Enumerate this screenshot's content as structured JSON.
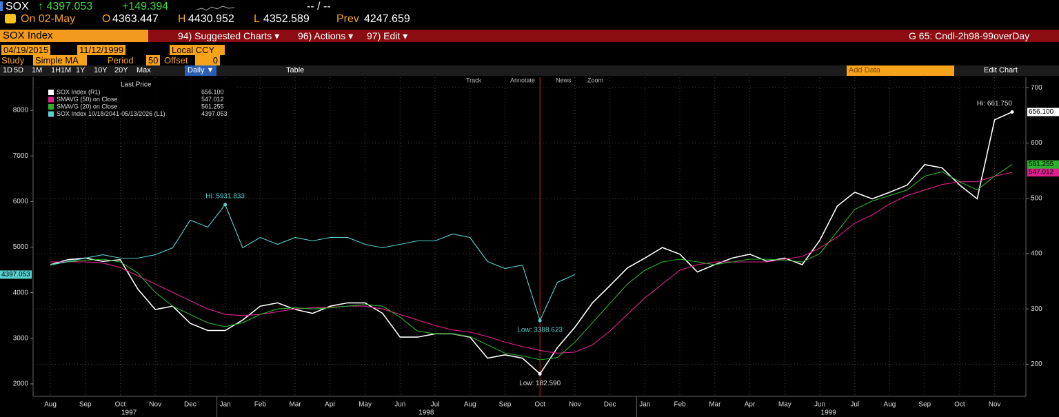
{
  "header": {
    "ticker": "SOX",
    "last": "↑ 4397.053",
    "change": "+149.394",
    "bid_ask": "-- / --",
    "date": "On 02-May",
    "open": {
      "label": "O",
      "value": "4363.447"
    },
    "high": {
      "label": "H",
      "value": "4430.952"
    },
    "low": {
      "label": "L",
      "value": "4352.589"
    },
    "prev": {
      "label": "Prev",
      "value": "4247.659"
    }
  },
  "menu": {
    "security": "SOX Index",
    "items": [
      "94) Suggested Charts ▾",
      "96) Actions ▾",
      "97) Edit ▾"
    ],
    "chart_name": "G 65: Cndl-2h98-99overDay"
  },
  "controls": {
    "start_date": "04/19/2015",
    "end_date": "11/12/1999",
    "currency": "Local CCY",
    "study_label": "Study",
    "study": "Simple MA",
    "period_label": "Period",
    "period": "50",
    "offset_label": "Offset",
    "offset": "0"
  },
  "tabs": {
    "ranges": [
      "1D",
      "5D",
      "1M",
      "1H1M",
      "1Y",
      "10Y",
      "20Y",
      "Max"
    ],
    "frequency": "Daily ▼",
    "table": "Table",
    "add_data": "Add Data",
    "edit_chart": "Edit Chart"
  },
  "chart_tools": [
    "Track",
    "Annotate",
    "News",
    "Zoom"
  ],
  "chart_data": {
    "type": "line",
    "legend_title": "Last Price",
    "categories": [
      "Aug",
      null,
      "Sep",
      null,
      "Oct",
      null,
      "Nov",
      null,
      "Dec",
      null,
      "Jan",
      null,
      "Feb",
      null,
      "Mar",
      null,
      "Apr",
      null,
      "May",
      null,
      "Jun",
      null,
      "Jul",
      null,
      "Aug",
      null,
      "Sep",
      null,
      "Oct",
      null,
      "Nov",
      null,
      "Dec",
      null,
      "Jan",
      null,
      "Feb",
      null,
      "Mar",
      null,
      "Apr",
      null,
      "May",
      null,
      "Jun",
      null,
      "Jul",
      null,
      "Aug",
      null,
      "Sep",
      null,
      "Oct",
      null,
      "Nov",
      null
    ],
    "years": [
      "1997",
      "1998",
      "1999"
    ],
    "ylim": [
      1727,
      8727
    ],
    "yticks": [
      2000,
      3000,
      4000,
      5000,
      6000,
      7000,
      8000
    ],
    "y2lim": [
      142,
      719
    ],
    "y2ticks": [
      200,
      300,
      400,
      500,
      600,
      700
    ],
    "grid": true,
    "series": [
      {
        "name": "SOX Index  (R1)",
        "color": "#ffffff",
        "axis": "y2",
        "values": [
          380,
          389,
          392,
          386,
          389,
          336,
          299,
          305,
          274,
          261,
          261,
          280,
          305,
          311,
          299,
          292,
          305,
          311,
          311,
          292,
          249,
          249,
          255,
          255,
          249,
          211,
          217,
          211,
          182.59,
          230,
          267,
          311,
          342,
          374,
          392,
          411,
          399,
          367,
          380,
          392,
          399,
          386,
          392,
          380,
          424,
          486,
          511,
          499,
          511,
          524,
          561,
          555,
          524,
          499,
          642,
          656.1
        ],
        "value_labels": [
          null,
          null,
          null,
          null,
          null,
          null,
          null,
          null,
          null,
          null,
          null,
          null,
          null,
          null,
          null,
          null,
          null,
          null,
          null,
          null,
          null,
          null,
          null,
          null,
          null,
          null,
          null,
          null,
          null,
          null,
          null,
          null,
          null,
          null,
          null,
          null,
          null,
          null,
          null,
          null,
          null,
          null,
          null,
          null,
          null,
          null,
          null,
          null,
          null,
          null,
          null,
          null,
          null,
          null,
          null,
          "656.100"
        ]
      },
      {
        "name": "SMAVG (50)  on Close",
        "color": "#e0208f",
        "axis": "y2",
        "values": [
          385,
          385,
          385,
          383,
          375,
          360,
          345,
          330,
          315,
          300,
          290,
          288,
          290,
          295,
          300,
          302,
          303,
          305,
          305,
          300,
          290,
          280,
          270,
          262,
          258,
          250,
          240,
          232,
          225,
          220,
          222,
          235,
          260,
          290,
          320,
          345,
          370,
          380,
          385,
          385,
          385,
          385,
          390,
          395,
          410,
          430,
          455,
          470,
          490,
          505,
          515,
          525,
          530,
          530,
          540,
          547.012
        ],
        "value_labels": [
          null,
          null,
          null,
          null,
          null,
          null,
          null,
          null,
          null,
          null,
          null,
          null,
          null,
          null,
          null,
          null,
          null,
          null,
          null,
          null,
          null,
          null,
          null,
          null,
          null,
          null,
          null,
          null,
          null,
          null,
          null,
          null,
          null,
          null,
          null,
          null,
          null,
          null,
          null,
          null,
          null,
          null,
          null,
          null,
          null,
          null,
          null,
          null,
          null,
          null,
          null,
          null,
          null,
          null,
          null,
          "547.012"
        ]
      },
      {
        "name": "SMAVG (20)  on Close",
        "color": "#2db02d",
        "axis": "y2",
        "values": [
          380,
          385,
          388,
          390,
          385,
          365,
          330,
          305,
          290,
          275,
          268,
          275,
          290,
          300,
          302,
          300,
          302,
          305,
          308,
          305,
          285,
          260,
          255,
          255,
          250,
          235,
          220,
          215,
          208,
          212,
          240,
          275,
          310,
          345,
          370,
          385,
          390,
          385,
          380,
          385,
          390,
          390,
          388,
          385,
          400,
          440,
          480,
          495,
          505,
          515,
          540,
          548,
          530,
          515,
          540,
          561.255
        ],
        "value_labels": [
          null,
          null,
          null,
          null,
          null,
          null,
          null,
          null,
          null,
          null,
          null,
          null,
          null,
          null,
          null,
          null,
          null,
          null,
          null,
          null,
          null,
          null,
          null,
          null,
          null,
          null,
          null,
          null,
          null,
          null,
          null,
          null,
          null,
          null,
          null,
          null,
          null,
          null,
          null,
          null,
          null,
          null,
          null,
          null,
          null,
          null,
          null,
          null,
          null,
          null,
          null,
          null,
          null,
          null,
          null,
          "561.255"
        ]
      },
      {
        "name": "SOX Index 10/18/2041-05/13/2026   (L1)",
        "color": "#5ad1d1",
        "axis": "y",
        "values": [
          4606,
          4682,
          4758,
          4833,
          4758,
          4758,
          4833,
          4985,
          5591,
          5439,
          5931.833,
          4985,
          5212,
          5061,
          5212,
          5136,
          5212,
          5212,
          5061,
          4985,
          5061,
          5136,
          5136,
          5288,
          5212,
          4682,
          4530,
          4606,
          3388.623,
          4227,
          4397.053,
          null,
          null,
          null,
          null,
          null,
          null,
          null,
          null,
          null,
          null,
          null,
          null,
          null,
          null,
          null,
          null,
          null,
          null,
          null,
          null,
          null,
          null,
          null,
          null,
          null
        ],
        "value_labels": [
          null,
          null,
          null,
          null,
          null,
          null,
          null,
          null,
          null,
          null,
          null,
          null,
          null,
          null,
          null,
          null,
          null,
          null,
          null,
          null,
          null,
          null,
          null,
          null,
          null,
          null,
          null,
          null,
          null,
          null,
          "4397.053",
          null,
          null,
          null,
          null,
          null,
          null,
          null,
          null,
          null,
          null,
          null,
          null,
          null,
          null,
          null,
          null,
          null,
          null,
          null,
          null,
          null,
          null,
          null,
          null,
          null
        ]
      }
    ],
    "annotations": [
      "Hi: 5931.833",
      "Low: 3388.623",
      "Low: 182.590",
      "Hi: 661.750"
    ]
  }
}
